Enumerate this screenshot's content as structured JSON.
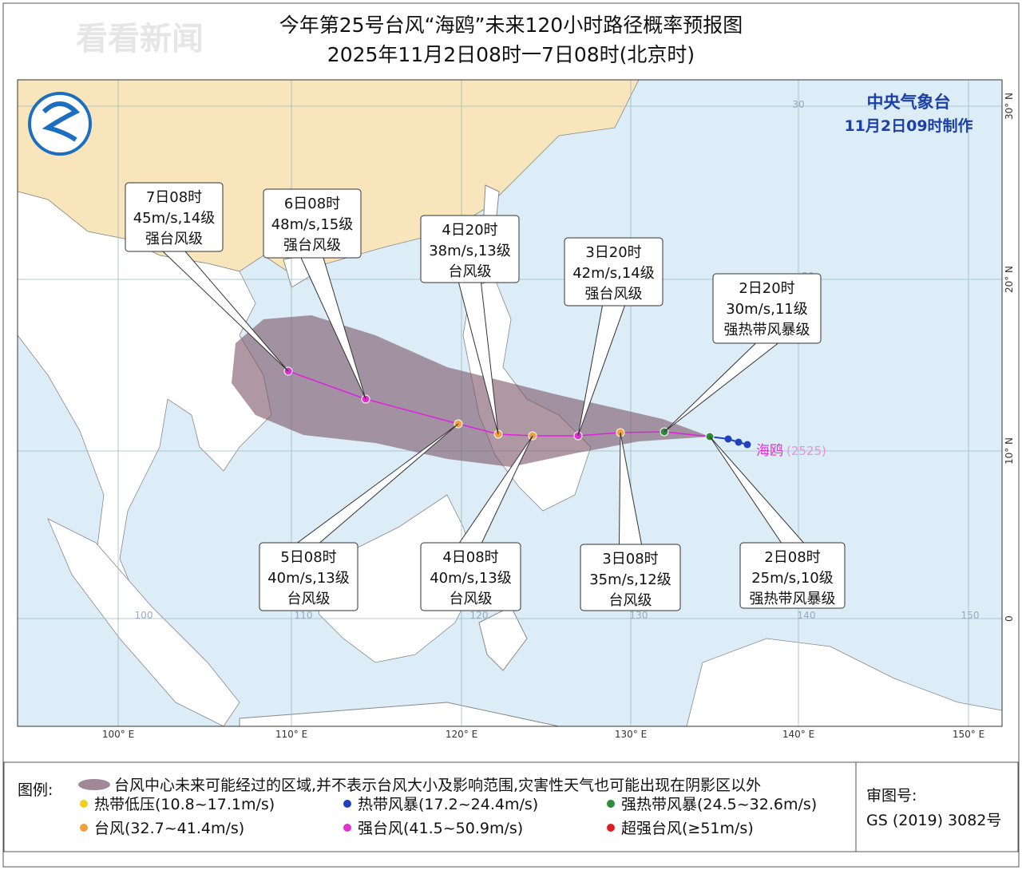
{
  "header": {
    "watermark": "看看新闻",
    "title": "今年第25号台风“海鸥”未来120小时路径概率预报图",
    "subtitle": "2025年11月2日08时一7日08时(北京时)"
  },
  "map": {
    "agency": "中央气象台",
    "issued": "11月2日09时制作",
    "storm_name": "海鸥",
    "storm_code": "(2525)",
    "lon_labels": [
      "100° E",
      "110° E",
      "120° E",
      "130° E",
      "140° E",
      "150° E"
    ],
    "lat_labels": [
      "30° N",
      "20° N",
      "10° N",
      "0"
    ],
    "inner_labels": [
      "100",
      "110",
      "120",
      "130",
      "140",
      "150",
      "20",
      "30"
    ],
    "forecast_points": [
      {
        "time": "2日08时",
        "wind": "25m/s,10级",
        "level": "强热带风暴级",
        "color": "#2e8b3a"
      },
      {
        "time": "2日20时",
        "wind": "30m/s,11级",
        "level": "强热带风暴级",
        "color": "#2e8b3a"
      },
      {
        "time": "3日08时",
        "wind": "35m/s,12级",
        "level": "台风级",
        "color": "#f0a040"
      },
      {
        "time": "3日20时",
        "wind": "42m/s,14级",
        "level": "强台风级",
        "color": "#e030d0"
      },
      {
        "time": "4日08时",
        "wind": "40m/s,13级",
        "level": "台风级",
        "color": "#f0a040"
      },
      {
        "time": "4日20时",
        "wind": "38m/s,13级",
        "level": "台风级",
        "color": "#f0a040"
      },
      {
        "time": "5日08时",
        "wind": "40m/s,13级",
        "level": "台风级",
        "color": "#f0a040"
      },
      {
        "time": "6日08时",
        "wind": "48m/s,15级",
        "level": "强台风级",
        "color": "#e030d0"
      },
      {
        "time": "7日08时",
        "wind": "45m/s,14级",
        "level": "强台风级",
        "color": "#e030d0"
      }
    ]
  },
  "legend": {
    "title": "图例:",
    "cone": "台风中心未来可能经过的区域,并不表示台风大小及影响范围,灾害性天气也可能出现在阴影区以外",
    "items": [
      {
        "label": "热带低压(10.8~17.1m/s)",
        "color": "#f0d020"
      },
      {
        "label": "热带风暴(17.2~24.4m/s)",
        "color": "#2040c0"
      },
      {
        "label": "强热带风暴(24.5~32.6m/s)",
        "color": "#2e8b3a"
      },
      {
        "label": "台风(32.7~41.4m/s)",
        "color": "#f0a040"
      },
      {
        "label": "强台风(41.5~50.9m/s)",
        "color": "#e030d0"
      },
      {
        "label": "超强台风(≥51m/s)",
        "color": "#e02020"
      }
    ]
  },
  "approval": {
    "label": "审图号:",
    "number": "GS (2019) 3082号"
  }
}
